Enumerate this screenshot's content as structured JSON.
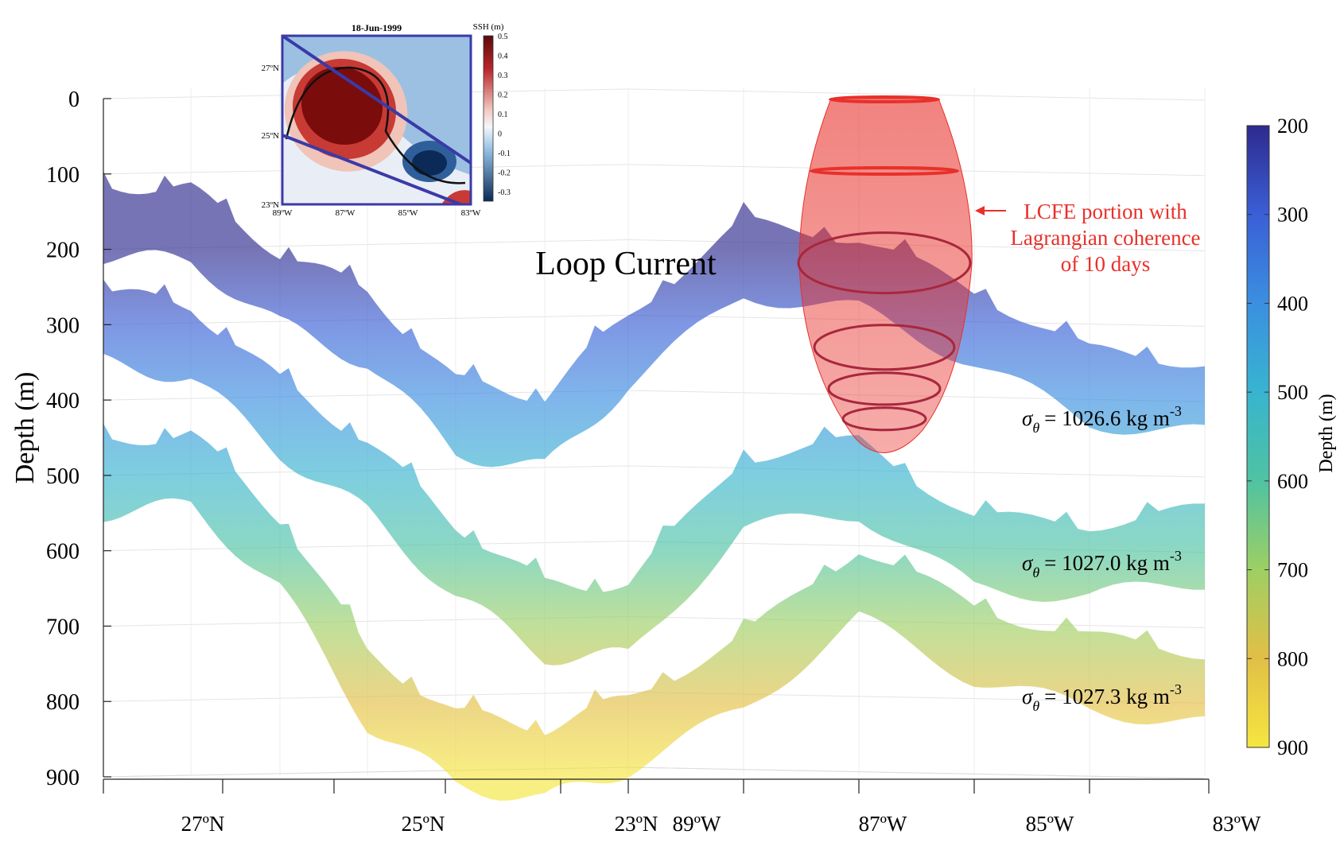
{
  "chart_data": [
    {
      "type": "surface3d",
      "title": "",
      "annotation_main": "Loop Current",
      "zlabel": "Depth (m)",
      "z_ticks": [
        0,
        100,
        200,
        300,
        400,
        500,
        600,
        700,
        800,
        900
      ],
      "zlim": [
        0,
        900
      ],
      "lat_ticks": [
        "27ºN",
        "25ºN",
        "23ºN"
      ],
      "lon_ticks": [
        "89ºW",
        "87ºW",
        "85ºW",
        "83ºW"
      ],
      "surfaces": [
        {
          "label_prefix": "σ",
          "label_sub": "θ",
          "label_value": "= 1026.6 kg m",
          "label_exp": "-3",
          "depth_profile": [
            160,
            165,
            250,
            300,
            420,
            440,
            330,
            210,
            230,
            300,
            380,
            395
          ]
        },
        {
          "label_prefix": "σ",
          "label_sub": "θ",
          "label_value": "= 1027.0 kg m",
          "label_exp": "-3",
          "depth_profile": [
            300,
            320,
            420,
            500,
            610,
            690,
            690,
            520,
            500,
            600,
            610,
            590
          ]
        },
        {
          "label_prefix": "σ",
          "label_sub": "θ",
          "label_value": "= 1027.3 kg m",
          "label_exp": "-3",
          "depth_profile": [
            500,
            490,
            600,
            780,
            860,
            880,
            840,
            760,
            640,
            720,
            760,
            780
          ]
        }
      ],
      "lcfe": {
        "label_lines": [
          "LCFE portion with",
          "Lagrangian coherence",
          "of 10 days"
        ],
        "depth_range": [
          0,
          470
        ],
        "color": "#e8302a"
      },
      "colorbar": {
        "label": "Depth (m)",
        "ticks": [
          200,
          300,
          400,
          500,
          600,
          700,
          800,
          900
        ],
        "range": [
          200,
          900
        ],
        "colors": [
          "#2e2a8e",
          "#3a5fd6",
          "#3b8fe0",
          "#38b4cf",
          "#4fc3a2",
          "#9ecf63",
          "#e2bf46",
          "#f5e640"
        ]
      }
    },
    {
      "type": "heatmap",
      "title": "18-Jun-1999",
      "colorbar_label": "SSH (m)",
      "colorbar_ticks": [
        "0.5",
        "0.4",
        "0.3",
        "0.2",
        "0.1",
        "0",
        "-0.1",
        "-0.2",
        "-0.3"
      ],
      "colorbar_range": [
        -0.35,
        0.5
      ],
      "y_ticks": [
        "27ºN",
        "25ºN",
        "23ºN"
      ],
      "x_ticks": [
        "89ºW",
        "87ºW",
        "85ºW",
        "83ºW"
      ],
      "features": [
        {
          "kind": "anticyclone",
          "value": 0.5
        },
        {
          "kind": "cyclone",
          "value": -0.3
        }
      ]
    }
  ]
}
